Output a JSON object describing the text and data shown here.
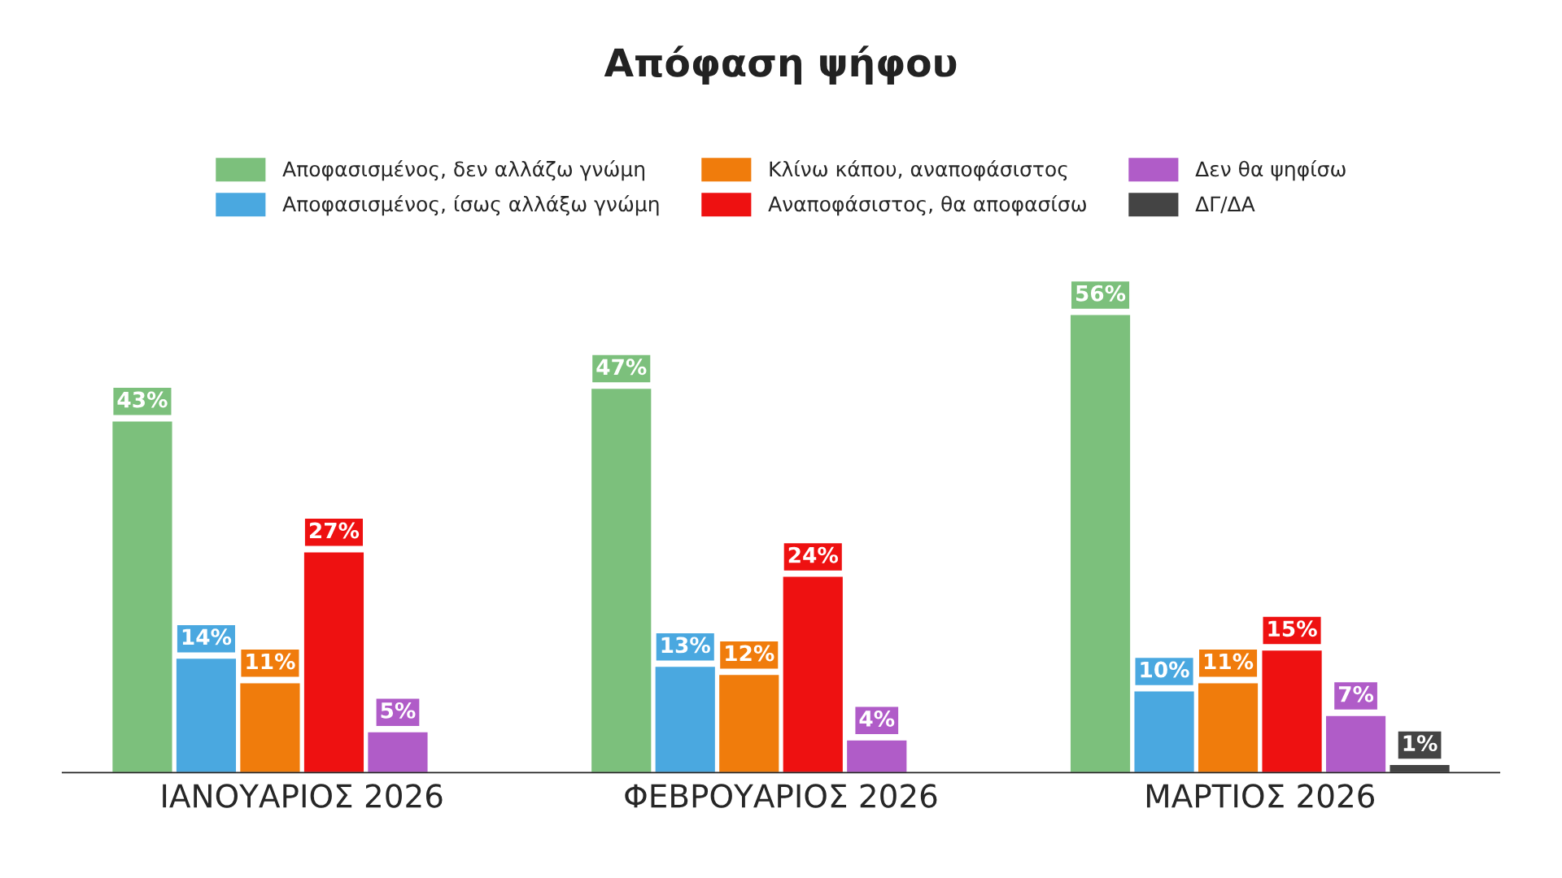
{
  "chart_data": {
    "type": "bar",
    "title": "Απόφαση ψήφου",
    "categories": [
      "ΙΑΝΟΥΑΡΙΟΣ 2026",
      "ΦΕΒΡΟΥΑΡΙΟΣ 2026",
      "ΜΑΡΤΙΟΣ 2026"
    ],
    "series": [
      {
        "name": "Αποφασισμένος, δεν αλλάζω γνώμη",
        "color": "#7cc07c",
        "values": [
          43,
          47,
          56
        ],
        "value_labels": [
          "43%",
          "47%",
          "56%"
        ]
      },
      {
        "name": "Αποφασισμένος, ίσως αλλάξω γνώμη",
        "color": "#4aa8e0",
        "values": [
          14,
          13,
          10
        ],
        "value_labels": [
          "14%",
          "13%",
          "10%"
        ]
      },
      {
        "name": "Κλίνω κάπου, αναποφάσιστος",
        "color": "#f07c0c",
        "values": [
          11,
          12,
          11
        ],
        "value_labels": [
          "11%",
          "12%",
          "11%"
        ]
      },
      {
        "name": "Αναποφάσιστος, θα αποφασίσω",
        "color": "#ee1111",
        "values": [
          27,
          24,
          15
        ],
        "value_labels": [
          "27%",
          "24%",
          "15%"
        ]
      },
      {
        "name": "Δεν θα ψηφίσω",
        "color": "#b05cc8",
        "values": [
          5,
          4,
          7
        ],
        "value_labels": [
          "5%",
          "4%",
          "7%"
        ]
      },
      {
        "name": "ΔΓ/ΔΑ",
        "color": "#444444",
        "values": [
          null,
          null,
          1
        ],
        "value_labels": [
          null,
          null,
          "1%"
        ]
      }
    ],
    "legend": "top",
    "grid": false
  }
}
